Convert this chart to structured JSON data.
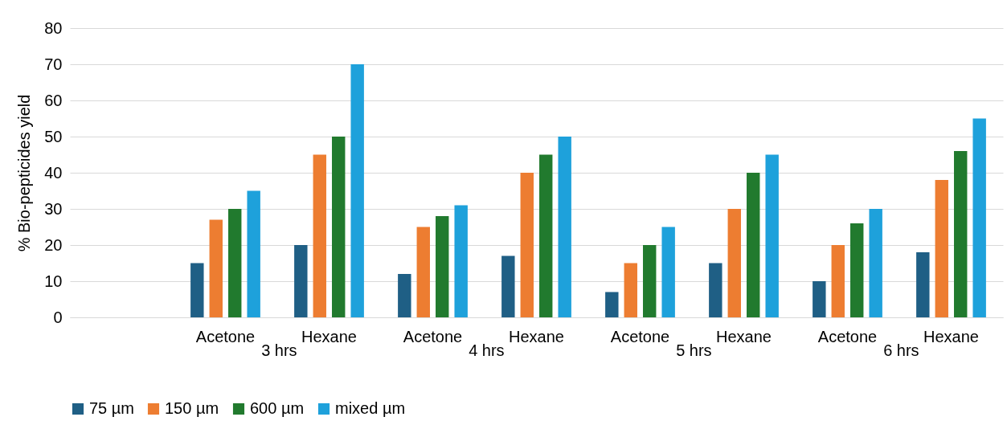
{
  "chart_data": {
    "type": "bar",
    "ylabel": "% Bio-pepticides yield",
    "categories": [
      null,
      "Acetone",
      "Hexane",
      "Acetone",
      "Hexane",
      "Acetone",
      "Hexane",
      "Acetone",
      "Hexane"
    ],
    "annotations": [
      "3 hrs",
      "4 hrs",
      "5 hrs",
      "6 hrs"
    ],
    "series": [
      {
        "name": "75 µm",
        "color": "#1f5f85",
        "values": [
          null,
          15,
          20,
          12,
          17,
          7,
          15,
          10,
          18
        ]
      },
      {
        "name": "150 µm",
        "color": "#ed7d31",
        "values": [
          null,
          27,
          45,
          25,
          40,
          15,
          30,
          20,
          38
        ]
      },
      {
        "name": "600 µm",
        "color": "#217a2e",
        "values": [
          null,
          30,
          50,
          28,
          45,
          20,
          40,
          26,
          46
        ]
      },
      {
        "name": "mixed µm",
        "color": "#1ea1db",
        "values": [
          null,
          35,
          70,
          31,
          50,
          25,
          45,
          30,
          55
        ]
      }
    ],
    "ylim": [
      0,
      80
    ],
    "yticks": [
      0,
      10,
      20,
      30,
      40,
      50,
      60,
      70,
      80
    ],
    "grid": "y",
    "legend": "bottom"
  }
}
